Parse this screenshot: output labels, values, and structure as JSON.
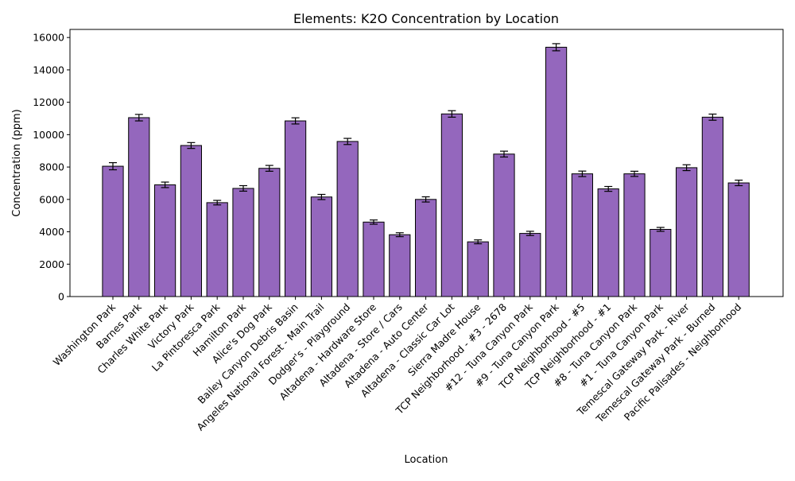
{
  "chart_data": {
    "type": "bar",
    "title": "Elements: K2O Concentration by Location",
    "xlabel": "Location",
    "ylabel": "Concentration (ppm)",
    "ylim": [
      0,
      16500
    ],
    "yticks": [
      0,
      2000,
      4000,
      6000,
      8000,
      10000,
      12000,
      14000,
      16000
    ],
    "grid": false,
    "bar_color": "#9467bd",
    "edge_color": "#000000",
    "categories": [
      "Washington Park",
      "Barnes Park",
      "Charles White Park",
      "Victory Park",
      "La Pintoresca Park",
      "Hamilton Park",
      "Alice's Dog Park",
      "Bailey Canyon Debris Basin",
      "Angeles National Forest - Main Trail",
      "Dodger's - Playground",
      "Altadena - Hardware Store",
      "Altadena - Store / Cars",
      "Altadena - Auto Center",
      "Altadena - Classic Car Lot",
      "Sierra Madre House",
      "TCP Neighborhood - #3 - 2678",
      "#12 - Tuna Canyon Park",
      "#9 - Tuna Canyon Park",
      "TCP Neighborhood - #5",
      "TCP Neighborhood - #1",
      "#8 - Tuna Canyon Park",
      "#1 - Tuna Canyon Park",
      "Temescal Gateway Park - River",
      "Temescal Gateway Park - Burned",
      "Pacific Palisades - Neighborhood"
    ],
    "values": [
      8050,
      11050,
      6900,
      9330,
      5800,
      6680,
      7920,
      10850,
      6150,
      9580,
      4600,
      3820,
      6000,
      11280,
      3380,
      8800,
      3900,
      15400,
      7580,
      6650,
      7580,
      4150,
      7960,
      11080,
      7020
    ],
    "errors": [
      220,
      200,
      170,
      180,
      140,
      170,
      180,
      190,
      160,
      190,
      130,
      120,
      160,
      200,
      120,
      180,
      130,
      220,
      170,
      150,
      160,
      120,
      180,
      190,
      170
    ]
  }
}
